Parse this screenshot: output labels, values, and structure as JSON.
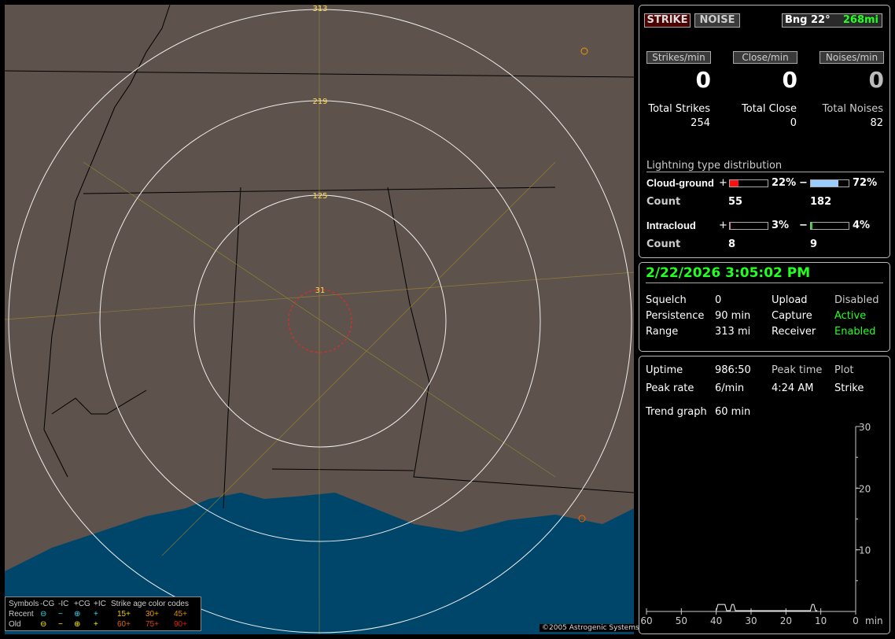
{
  "map": {
    "range_labels": [
      "31",
      "125",
      "219",
      "313"
    ],
    "copyright": "©2005 Astrogenic Systems",
    "legend": {
      "header": [
        "Symbols",
        "-CG",
        "-IC",
        "+CG",
        "+IC",
        "Strike age color codes"
      ],
      "recent_label": "Recent",
      "old_label": "Old",
      "recent_symbols": [
        "⊖",
        "−",
        "⊕",
        "+"
      ],
      "old_symbols": [
        "⊖",
        "−",
        "⊕",
        "+"
      ],
      "recent_ages": [
        "15+",
        "30+",
        "45+"
      ],
      "old_ages": [
        "60+",
        "75+",
        "90+"
      ],
      "recent_color": "#33ddee",
      "old_color": "#ffee00",
      "age_colors": [
        "#eecc00",
        "#ee9900",
        "#dd8800",
        "#dd6600",
        "#dd4400",
        "#dd2200"
      ]
    }
  },
  "top": {
    "strike_button": "STRIKE",
    "noise_button": "NOISE",
    "bearing": "Bng 22°",
    "distance": "268mi",
    "rate_labels": [
      "Strikes/min",
      "Close/min",
      "Noises/min"
    ],
    "rate_values": [
      "0",
      "0",
      "0"
    ],
    "total_labels": [
      "Total Strikes",
      "Total Close",
      "Total Noises"
    ],
    "total_values": [
      "254",
      "0",
      "82"
    ],
    "dist_title": "Lightning type distribution",
    "cg_label": "Cloud-ground",
    "ic_label": "Intracloud",
    "count_label": "Count",
    "plus": "+",
    "minus": "−",
    "cg_plus_pct": "22%",
    "cg_minus_pct": "72%",
    "ic_plus_pct": "3%",
    "ic_minus_pct": "4%",
    "cg_plus_fill": 22,
    "cg_minus_fill": 72,
    "ic_plus_fill": 3,
    "ic_minus_fill": 4,
    "cg_plus_count": "55",
    "cg_minus_count": "182",
    "ic_plus_count": "8",
    "ic_minus_count": "9",
    "colors": {
      "cg_plus": "#ff1010",
      "cg_minus": "#99ccff",
      "ic_plus": "#dd66aa",
      "ic_minus": "#22dd22"
    }
  },
  "status": {
    "datetime": "2/22/2026 3:05:02 PM",
    "rows": [
      {
        "k": "Squelch",
        "v": "0",
        "k2": "Upload",
        "v2": "Disabled",
        "c": "#ccc"
      },
      {
        "k": "Persistence",
        "v": "90 min",
        "k2": "Capture",
        "v2": "Active",
        "c": "#2f2"
      },
      {
        "k": "Range",
        "v": "313 mi",
        "k2": "Receiver",
        "v2": "Enabled",
        "c": "#2f2"
      }
    ]
  },
  "stats": {
    "uptime_label": "Uptime",
    "uptime": "986:50",
    "peak_time_label": "Peak time",
    "plot_label": "Plot",
    "peak_rate_label": "Peak rate",
    "peak_rate": "6/min",
    "peak_time": "4:24 AM",
    "plot": "Strike",
    "trend_label": "Trend graph",
    "trend": "60 min"
  },
  "chart_data": {
    "type": "line",
    "xlabel": "min",
    "x_ticks": [
      "60",
      "50",
      "40",
      "30",
      "20",
      "10",
      "0"
    ],
    "y_ticks": [
      "10",
      "20",
      "30"
    ],
    "xlim": [
      60,
      0
    ],
    "ylim": [
      0,
      30
    ],
    "series": [
      {
        "x": [
          40,
          39.5,
          39,
          38,
          37.5,
          37,
          36,
          35.5,
          35,
          34.5,
          13,
          12.5,
          12,
          11.5,
          11
        ],
        "y": [
          0,
          1,
          1,
          1,
          1,
          0,
          0,
          1,
          1,
          0,
          0,
          1,
          1,
          0,
          0
        ]
      }
    ]
  }
}
